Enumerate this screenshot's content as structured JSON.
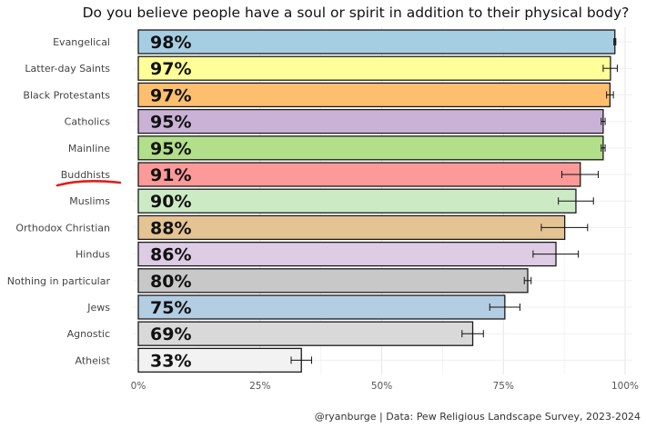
{
  "chart_data": {
    "type": "bar",
    "orientation": "horizontal",
    "title": "Do you believe people have a soul or spirit in addition to their physical body?",
    "caption": "@ryanburge | Data: Pew Religious Landscape Survey, 2023-2024",
    "xlim": [
      0,
      100
    ],
    "x_ticks": [
      "0%",
      "25%",
      "50%",
      "75%",
      "100%"
    ],
    "x_tick_values": [
      0,
      25,
      50,
      75,
      100
    ],
    "grid": true,
    "categories": [
      "Evangelical",
      "Latter-day Saints",
      "Black Protestants",
      "Catholics",
      "Mainline",
      "Buddhists",
      "Muslims",
      "Orthodox Christian",
      "Hindus",
      "Nothing in particular",
      "Jews",
      "Agnostic",
      "Atheist"
    ],
    "values": [
      98,
      97,
      97,
      95,
      95,
      91,
      90,
      88,
      86,
      80,
      75,
      69,
      33
    ],
    "exact_values": [
      97.9,
      97.0,
      96.9,
      95.5,
      95.5,
      90.8,
      89.9,
      87.6,
      85.8,
      80.0,
      75.3,
      68.7,
      33.5
    ],
    "value_labels": [
      "98%",
      "97%",
      "97%",
      "95%",
      "95%",
      "91%",
      "90%",
      "88%",
      "86%",
      "80%",
      "75%",
      "69%",
      "33%"
    ],
    "error_low": [
      97.7,
      95.5,
      96.2,
      95.1,
      95.1,
      87.0,
      86.3,
      82.8,
      81.1,
      79.3,
      72.2,
      66.5,
      31.4
    ],
    "error_high": [
      98.1,
      98.4,
      97.6,
      95.9,
      95.9,
      94.5,
      93.5,
      92.3,
      90.4,
      80.7,
      78.4,
      70.9,
      35.6
    ],
    "colors": [
      "#a6cee3",
      "#ffff99",
      "#fdbf6f",
      "#cab2d6",
      "#b2df8a",
      "#fb9a99",
      "#ccebc5",
      "#e5c494",
      "#decbe4",
      "#c8c8c8",
      "#b3cde3",
      "#d9d9d9",
      "#f2f2f2"
    ],
    "highlight_category": "Buddhists",
    "highlight_color": "#e0201b"
  }
}
